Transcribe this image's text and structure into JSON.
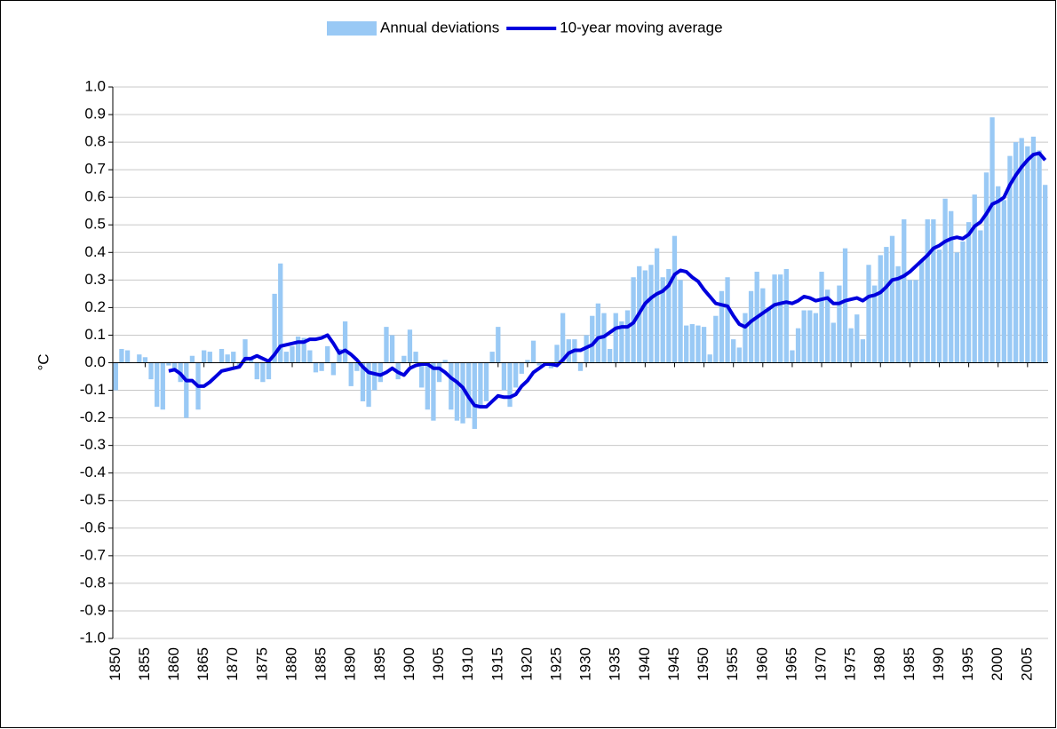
{
  "chart_data": {
    "type": "bar-line",
    "y_label": "°C",
    "x": [
      1850,
      1851,
      1852,
      1853,
      1854,
      1855,
      1856,
      1857,
      1858,
      1859,
      1860,
      1861,
      1862,
      1863,
      1864,
      1865,
      1866,
      1867,
      1868,
      1869,
      1870,
      1871,
      1872,
      1873,
      1874,
      1875,
      1876,
      1877,
      1878,
      1879,
      1880,
      1881,
      1882,
      1883,
      1884,
      1885,
      1886,
      1887,
      1888,
      1889,
      1890,
      1891,
      1892,
      1893,
      1894,
      1895,
      1896,
      1897,
      1898,
      1899,
      1900,
      1901,
      1902,
      1903,
      1904,
      1905,
      1906,
      1907,
      1908,
      1909,
      1910,
      1911,
      1912,
      1913,
      1914,
      1915,
      1916,
      1917,
      1918,
      1919,
      1920,
      1921,
      1922,
      1923,
      1924,
      1925,
      1926,
      1927,
      1928,
      1929,
      1930,
      1931,
      1932,
      1933,
      1934,
      1935,
      1936,
      1937,
      1938,
      1939,
      1940,
      1941,
      1942,
      1943,
      1944,
      1945,
      1946,
      1947,
      1948,
      1949,
      1950,
      1951,
      1952,
      1953,
      1954,
      1955,
      1956,
      1957,
      1958,
      1959,
      1960,
      1961,
      1962,
      1963,
      1964,
      1965,
      1966,
      1967,
      1968,
      1969,
      1970,
      1971,
      1972,
      1973,
      1974,
      1975,
      1976,
      1977,
      1978,
      1979,
      1980,
      1981,
      1982,
      1983,
      1984,
      1985,
      1986,
      1987,
      1988,
      1989,
      1990,
      1991,
      1992,
      1993,
      1994,
      1995,
      1996,
      1997,
      1998,
      1999,
      2000,
      2001,
      2002,
      2003,
      2004,
      2005,
      2006,
      2007,
      2008
    ],
    "xlim": [
      1849.5,
      2008.5
    ],
    "xticks": [
      1850,
      1855,
      1860,
      1865,
      1870,
      1875,
      1880,
      1885,
      1890,
      1895,
      1900,
      1905,
      1910,
      1915,
      1920,
      1925,
      1930,
      1935,
      1940,
      1945,
      1950,
      1955,
      1960,
      1965,
      1970,
      1975,
      1980,
      1985,
      1990,
      1995,
      2000,
      2005
    ],
    "ylim": [
      -1.0,
      1.0
    ],
    "yticks": [
      {
        "value": -1.0,
        "label": "-1.0"
      },
      -0.9,
      -0.8,
      -0.7,
      -0.6,
      -0.5,
      -0.4,
      -0.3,
      -0.2,
      -0.1,
      {
        "value": 0.0,
        "label": "0.0"
      },
      0.1,
      0.2,
      0.3,
      0.4,
      0.5,
      0.6,
      0.7,
      0.8,
      0.9,
      {
        "value": 1.0,
        "label": "1.0"
      }
    ],
    "grid": true,
    "legend": "top",
    "series": [
      {
        "name": "Annual deviations",
        "type": "bar",
        "color": "#99c9f5",
        "values": [
          -0.1,
          0.05,
          0.045,
          0.0,
          0.03,
          0.02,
          -0.06,
          -0.16,
          -0.17,
          -0.01,
          -0.03,
          -0.07,
          -0.2,
          0.025,
          -0.17,
          0.045,
          0.04,
          0.0,
          0.05,
          0.03,
          0.04,
          -0.01,
          0.085,
          0.02,
          -0.06,
          -0.07,
          -0.06,
          0.25,
          0.36,
          0.04,
          0.06,
          0.095,
          0.09,
          0.045,
          -0.035,
          -0.03,
          0.06,
          -0.045,
          0.05,
          0.15,
          -0.085,
          -0.03,
          -0.14,
          -0.16,
          -0.1,
          -0.07,
          0.13,
          0.1,
          -0.06,
          0.025,
          0.12,
          0.04,
          -0.09,
          -0.17,
          -0.21,
          -0.07,
          0.01,
          -0.17,
          -0.21,
          -0.22,
          -0.2,
          -0.24,
          -0.16,
          -0.14,
          0.04,
          0.13,
          -0.1,
          -0.16,
          -0.09,
          -0.04,
          0.01,
          0.08,
          -0.01,
          0.0,
          -0.02,
          0.065,
          0.18,
          0.085,
          0.085,
          -0.03,
          0.1,
          0.17,
          0.215,
          0.18,
          0.05,
          0.18,
          0.15,
          0.19,
          0.31,
          0.35,
          0.335,
          0.355,
          0.415,
          0.31,
          0.34,
          0.46,
          0.3,
          0.135,
          0.14,
          0.135,
          0.13,
          0.03,
          0.17,
          0.26,
          0.31,
          0.085,
          0.055,
          0.18,
          0.26,
          0.33,
          0.27,
          0.2,
          0.32,
          0.32,
          0.34,
          0.045,
          0.125,
          0.19,
          0.19,
          0.18,
          0.33,
          0.265,
          0.145,
          0.28,
          0.415,
          0.125,
          0.175,
          0.085,
          0.355,
          0.28,
          0.39,
          0.42,
          0.46,
          0.35,
          0.52,
          0.3,
          0.3,
          0.37,
          0.52,
          0.52,
          0.41,
          0.595,
          0.55,
          0.4,
          0.44,
          0.51,
          0.61,
          0.48,
          0.69,
          0.89,
          0.64,
          0.59,
          0.75,
          0.8,
          0.815,
          0.785,
          0.82,
          0.77,
          0.645
        ]
      },
      {
        "name": "10-year moving average",
        "type": "line",
        "color": "#0000dd",
        "values": [
          null,
          null,
          null,
          null,
          null,
          null,
          null,
          null,
          null,
          -0.03,
          -0.025,
          -0.04,
          -0.065,
          -0.065,
          -0.085,
          -0.085,
          -0.07,
          -0.05,
          -0.03,
          -0.025,
          -0.02,
          -0.015,
          0.015,
          0.015,
          0.025,
          0.015,
          0.005,
          0.03,
          0.06,
          0.065,
          0.07,
          0.075,
          0.075,
          0.085,
          0.085,
          0.09,
          0.1,
          0.07,
          0.035,
          0.045,
          0.03,
          0.01,
          -0.015,
          -0.035,
          -0.04,
          -0.045,
          -0.035,
          -0.02,
          -0.035,
          -0.045,
          -0.02,
          -0.01,
          -0.005,
          -0.005,
          -0.02,
          -0.02,
          -0.035,
          -0.055,
          -0.07,
          -0.09,
          -0.125,
          -0.155,
          -0.16,
          -0.16,
          -0.14,
          -0.12,
          -0.125,
          -0.125,
          -0.115,
          -0.085,
          -0.065,
          -0.035,
          -0.02,
          -0.005,
          -0.005,
          -0.01,
          0.01,
          0.035,
          0.045,
          0.045,
          0.055,
          0.065,
          0.09,
          0.095,
          0.11,
          0.125,
          0.13,
          0.13,
          0.145,
          0.18,
          0.215,
          0.235,
          0.25,
          0.26,
          0.28,
          0.32,
          0.335,
          0.33,
          0.31,
          0.295,
          0.265,
          0.24,
          0.215,
          0.21,
          0.205,
          0.17,
          0.14,
          0.13,
          0.15,
          0.165,
          0.18,
          0.195,
          0.21,
          0.215,
          0.22,
          0.215,
          0.225,
          0.24,
          0.235,
          0.225,
          0.23,
          0.235,
          0.215,
          0.215,
          0.225,
          0.23,
          0.235,
          0.225,
          0.24,
          0.245,
          0.255,
          0.275,
          0.3,
          0.305,
          0.315,
          0.33,
          0.35,
          0.37,
          0.39,
          0.415,
          0.425,
          0.44,
          0.45,
          0.455,
          0.45,
          0.465,
          0.495,
          0.51,
          0.54,
          0.575,
          0.585,
          0.6,
          0.645,
          0.68,
          0.71,
          0.735,
          0.755,
          0.76,
          0.735
        ]
      }
    ]
  }
}
